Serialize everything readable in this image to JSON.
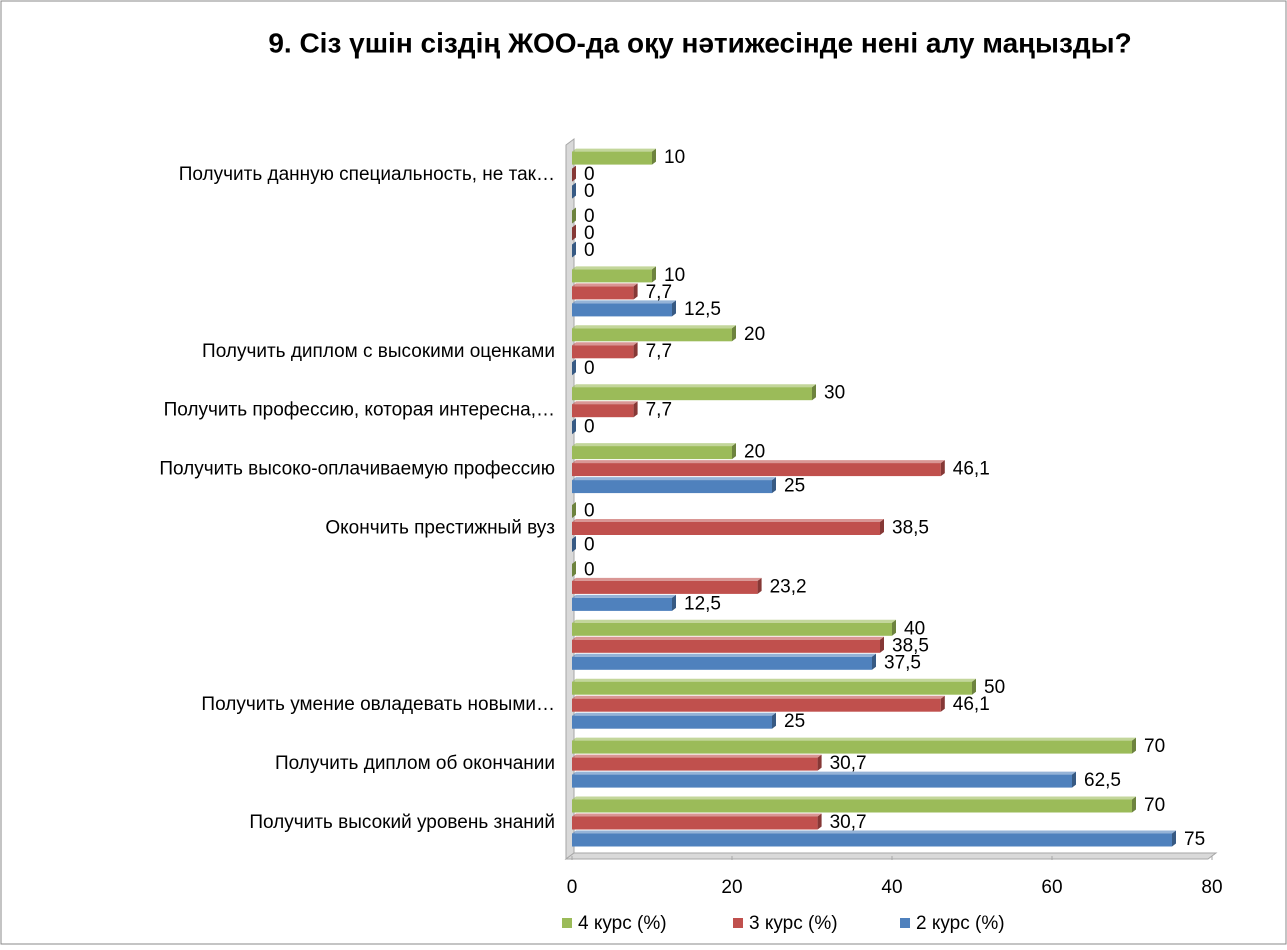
{
  "chart_data": {
    "type": "bar",
    "orientation": "horizontal",
    "title": "9. Сіз үшін сіздің ЖОО-да оқу нәтижесінде нені алу маңызды?",
    "categories": [
      "Получить высокий уровень знаний",
      "Получить диплом об окончании",
      "Получить умение овладевать новыми…",
      null,
      null,
      "Окончить престижный вуз",
      "Получить высоко-оплачиваемую профессию",
      "Получить профессию, которая интересна,…",
      "Получить диплом с высокими оценками",
      null,
      null,
      "Получить данную специальность, не так…"
    ],
    "series": [
      {
        "name": "4 курс (%)",
        "color": "#9bbb59",
        "values": [
          70,
          70,
          50,
          40,
          0,
          0,
          20,
          30,
          20,
          10,
          0,
          10
        ],
        "value_labels": [
          "70",
          "70",
          "50",
          "40",
          "0",
          "0",
          "20",
          "30",
          "20",
          "10",
          "0",
          "10"
        ]
      },
      {
        "name": "3 курс (%)",
        "color": "#c0504d",
        "values": [
          30.7,
          30.7,
          46.1,
          38.5,
          23.2,
          38.5,
          46.1,
          7.7,
          7.7,
          7.7,
          0,
          0
        ],
        "value_labels": [
          "30,7",
          "30,7",
          "46,1",
          "38,5",
          "23,2",
          "38,5",
          "46,1",
          "7,7",
          "7,7",
          "7,7",
          "0",
          "0"
        ]
      },
      {
        "name": "2 курс (%)",
        "color": "#4f81bd",
        "values": [
          75,
          62.5,
          25,
          37.5,
          12.5,
          0,
          25,
          0,
          0,
          12.5,
          0,
          0
        ],
        "value_labels": [
          "75",
          "62,5",
          "25",
          "37,5",
          "12,5",
          "0",
          "25",
          "0",
          "0",
          "12,5",
          "0",
          "0"
        ]
      }
    ],
    "xlim": [
      0,
      80
    ],
    "xticks": [
      0,
      20,
      40,
      60,
      80
    ],
    "legend": "bottom"
  }
}
